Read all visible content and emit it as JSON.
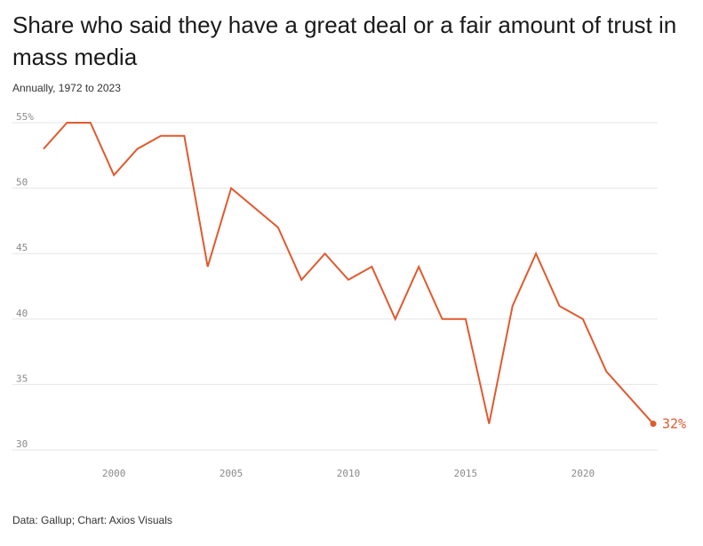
{
  "header": {
    "title": "Share who said they have a great deal or a fair amount of trust in mass media",
    "subtitle": "Annually, 1972 to 2023"
  },
  "footer": {
    "source": "Data: Gallup; Chart: Axios Visuals"
  },
  "colors": {
    "line": "#e05a2f",
    "grid": "#e6e6e6",
    "text": "#1a1a1a",
    "tick": "#8a8a8a"
  },
  "chart_data": {
    "type": "line",
    "title": "Share who said they have a great deal or a fair amount of trust in mass media",
    "subtitle": "Annually, 1972 to 2023",
    "xlabel": "",
    "ylabel": "",
    "xlim": [
      1997,
      2023
    ],
    "ylim": [
      30,
      55
    ],
    "grid": true,
    "y_ticks": [
      30,
      35,
      40,
      45,
      50,
      55
    ],
    "y_tick_labels": [
      "30",
      "35",
      "40",
      "45",
      "50",
      "55%"
    ],
    "x_ticks": [
      2000,
      2005,
      2010,
      2015,
      2020
    ],
    "x_tick_labels": [
      "2000",
      "2005",
      "2010",
      "2015",
      "2020"
    ],
    "x": [
      1997,
      1998,
      1999,
      2000,
      2001,
      2002,
      2003,
      2004,
      2005,
      2007,
      2008,
      2009,
      2010,
      2011,
      2012,
      2013,
      2014,
      2015,
      2016,
      2017,
      2018,
      2019,
      2020,
      2021,
      2023
    ],
    "series": [
      {
        "values": [
          53,
          55,
          55,
          51,
          53,
          54,
          54,
          44,
          50,
          47,
          43,
          45,
          43,
          44,
          40,
          44,
          40,
          40,
          32,
          41,
          45,
          41,
          40,
          36,
          32
        ]
      }
    ],
    "annotations": [
      {
        "x": 2023,
        "y": 32,
        "text": "32%"
      }
    ]
  }
}
